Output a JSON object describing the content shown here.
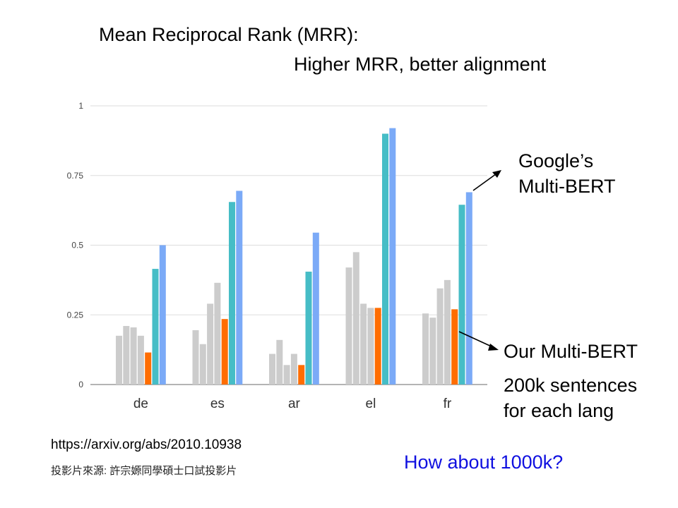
{
  "slide": {
    "title_line1": "Mean Reciprocal Rank (MRR):",
    "title_line2": "Higher MRR, better alignment",
    "google_annotation": [
      "Google’s",
      "Multi-BERT"
    ],
    "our_annotation": "Our Multi-BERT",
    "our_subtitle": [
      "200k sentences",
      "for each lang"
    ],
    "source_url": "https://arxiv.org/abs/2010.10938",
    "credit": "投影片來源: 許宗嫄同學碩士口試投影片",
    "question": "How about 1000k?"
  },
  "colors": {
    "gray": "#cccccc",
    "orange": "#ff6d01",
    "teal": "#46bdc6",
    "blue": "#7baaf7",
    "gridline": "#dddddd",
    "baseline": "#888888",
    "question_text": "#1010e0"
  },
  "chart_data": {
    "type": "bar",
    "categories": [
      "de",
      "es",
      "ar",
      "el",
      "fr"
    ],
    "ylim": [
      0,
      1
    ],
    "yticks": [
      {
        "value": 0,
        "label": "0"
      },
      {
        "value": 0.25,
        "label": "0.25"
      },
      {
        "value": 0.5,
        "label": "0.5"
      },
      {
        "value": 0.75,
        "label": "0.75"
      },
      {
        "value": 1,
        "label": "1"
      }
    ],
    "grid": true,
    "series": [
      {
        "color": "gray",
        "values": [
          0.175,
          0.195,
          0.11,
          0.42,
          0.255
        ]
      },
      {
        "color": "gray",
        "values": [
          0.21,
          0.145,
          0.16,
          0.475,
          0.24
        ]
      },
      {
        "color": "gray",
        "values": [
          0.205,
          0.29,
          0.07,
          0.29,
          0.345
        ]
      },
      {
        "color": "gray",
        "values": [
          0.175,
          0.365,
          0.11,
          0.275,
          0.375
        ]
      },
      {
        "color": "orange",
        "values": [
          0.115,
          0.235,
          0.07,
          0.275,
          0.27
        ]
      },
      {
        "color": "teal",
        "values": [
          0.415,
          0.655,
          0.405,
          0.9,
          0.645
        ]
      },
      {
        "color": "blue",
        "values": [
          0.5,
          0.695,
          0.545,
          0.92,
          0.69
        ]
      }
    ]
  }
}
